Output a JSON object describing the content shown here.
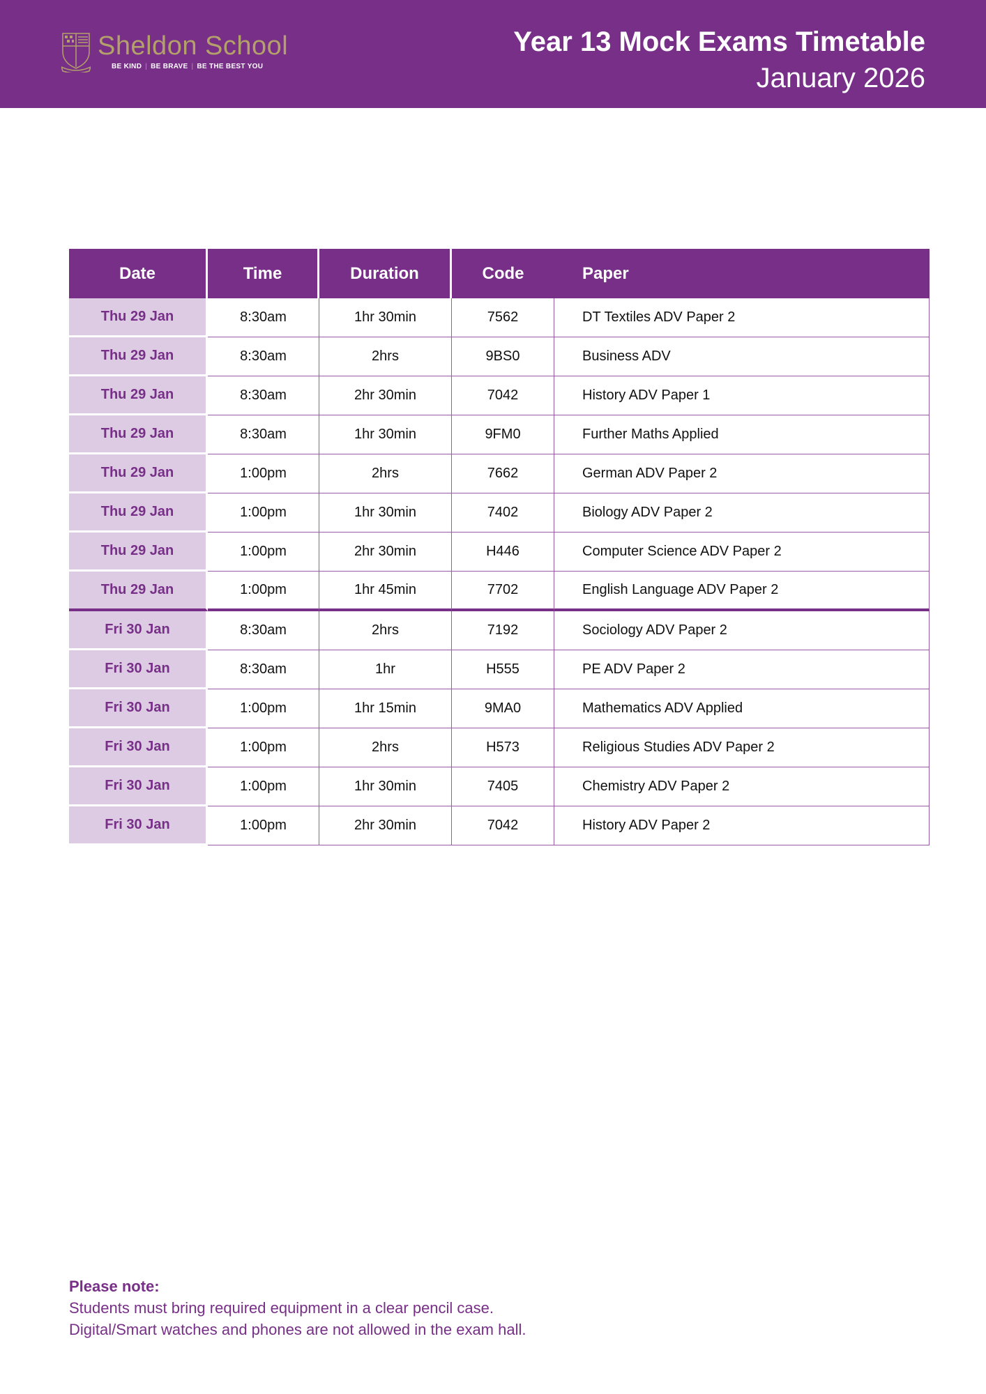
{
  "header": {
    "school_name": "Sheldon School",
    "motto": [
      "BE KIND",
      "BE BRAVE",
      "BE THE BEST YOU"
    ],
    "title": "Year 13 Mock Exams Timetable",
    "subtitle": "January 2026"
  },
  "colors": {
    "brand": "#772f87",
    "date_cell": "#dccbe2",
    "logo_gold": "#b4a06a"
  },
  "table": {
    "columns": [
      "Date",
      "Time",
      "Duration",
      "Code",
      "Paper"
    ],
    "rows": [
      {
        "date": "Thu 29 Jan",
        "time": "8:30am",
        "duration": "1hr 30min",
        "code": "7562",
        "paper": "DT Textiles ADV Paper 2"
      },
      {
        "date": "Thu 29 Jan",
        "time": "8:30am",
        "duration": "2hrs",
        "code": "9BS0",
        "paper": "Business ADV"
      },
      {
        "date": "Thu 29 Jan",
        "time": "8:30am",
        "duration": "2hr 30min",
        "code": "7042",
        "paper": "History ADV Paper 1"
      },
      {
        "date": "Thu 29 Jan",
        "time": "8:30am",
        "duration": "1hr 30min",
        "code": "9FM0",
        "paper": "Further Maths Applied"
      },
      {
        "date": "Thu 29 Jan",
        "time": "1:00pm",
        "duration": "2hrs",
        "code": "7662",
        "paper": "German ADV Paper 2"
      },
      {
        "date": "Thu 29 Jan",
        "time": "1:00pm",
        "duration": "1hr 30min",
        "code": "7402",
        "paper": "Biology ADV Paper 2"
      },
      {
        "date": "Thu 29 Jan",
        "time": "1:00pm",
        "duration": "2hr 30min",
        "code": "H446",
        "paper": "Computer Science ADV Paper 2"
      },
      {
        "date": "Thu 29 Jan",
        "time": "1:00pm",
        "duration": "1hr 45min",
        "code": "7702",
        "paper": "English Language ADV Paper 2"
      },
      {
        "date": "Fri 30 Jan",
        "time": "8:30am",
        "duration": "2hrs",
        "code": "7192",
        "paper": "Sociology ADV Paper 2"
      },
      {
        "date": "Fri 30 Jan",
        "time": "8:30am",
        "duration": "1hr",
        "code": "H555",
        "paper": "PE ADV Paper 2"
      },
      {
        "date": "Fri 30 Jan",
        "time": "1:00pm",
        "duration": "1hr 15min",
        "code": "9MA0",
        "paper": "Mathematics ADV Applied"
      },
      {
        "date": "Fri 30 Jan",
        "time": "1:00pm",
        "duration": "2hrs",
        "code": "H573",
        "paper": "Religious Studies ADV Paper 2"
      },
      {
        "date": "Fri 30 Jan",
        "time": "1:00pm",
        "duration": "1hr 30min",
        "code": "7405",
        "paper": "Chemistry ADV Paper 2"
      },
      {
        "date": "Fri 30 Jan",
        "time": "1:00pm",
        "duration": "2hr 30min",
        "code": "7042",
        "paper": "History ADV Paper 2"
      }
    ]
  },
  "note": {
    "heading": "Please note:",
    "lines": [
      "Students must bring required equipment in a clear pencil case.",
      "Digital/Smart watches and phones are not allowed in the exam hall."
    ]
  }
}
